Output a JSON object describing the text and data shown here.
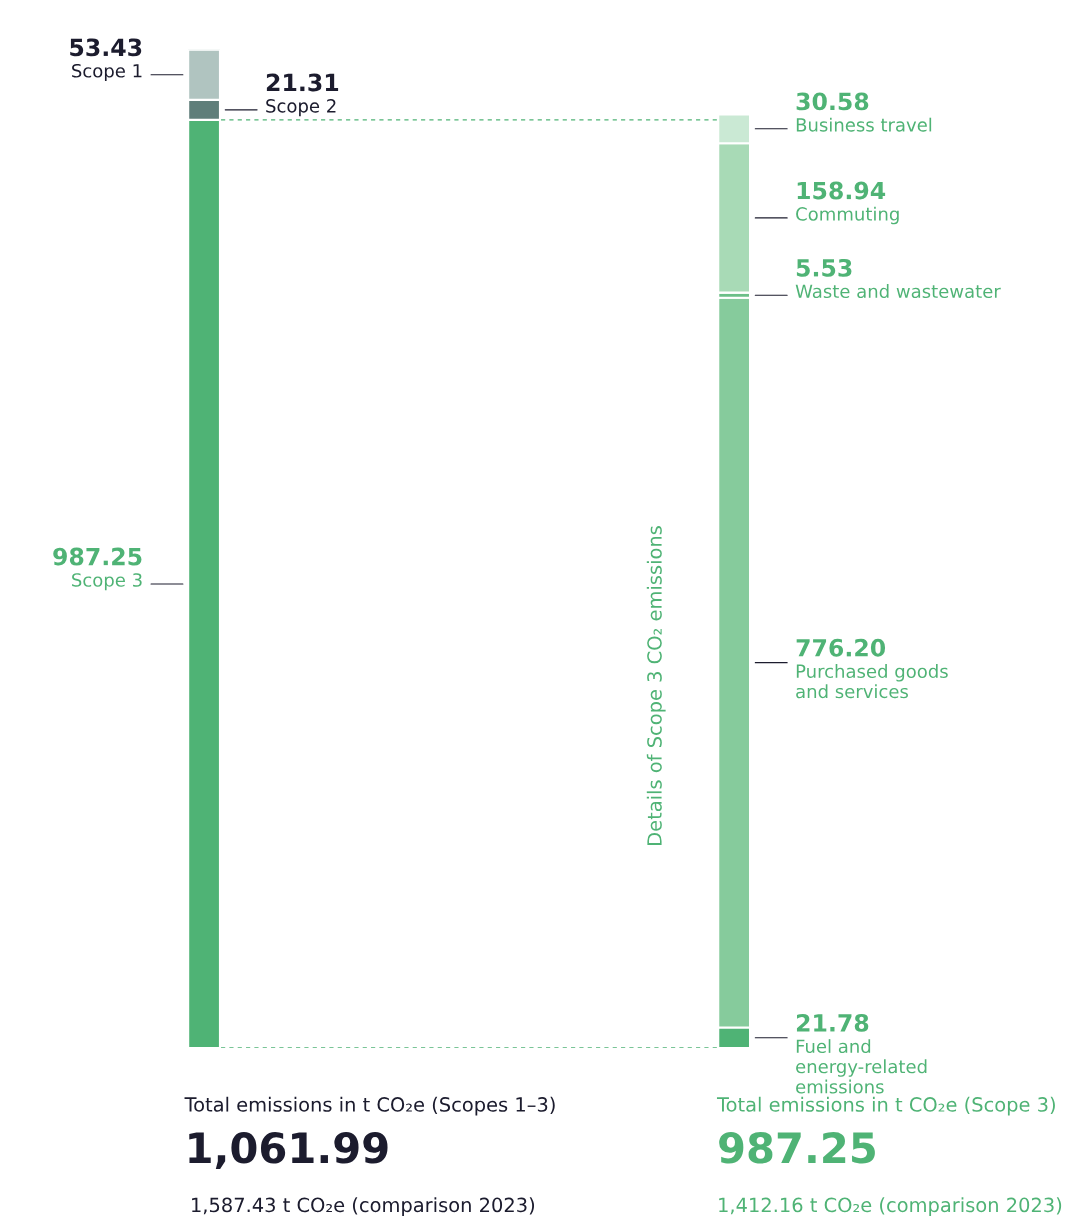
{
  "chart_data": {
    "type": "bar",
    "stacked": true,
    "categories": [
      null,
      null
    ],
    "ylim": [
      0,
      1061.99
    ],
    "ref_lines": [
      {
        "axis": "y",
        "value": 987.25,
        "color": "#4fb375",
        "line_style": "dashed"
      },
      {
        "axis": "y",
        "value": 0,
        "color": "#4fb375",
        "line_style": "dashed"
      }
    ],
    "series": [
      {
        "name": "Scope 3",
        "color": "#4fb375",
        "values": [
          987.25,
          null
        ],
        "value_labels": [
          "987.25",
          null
        ]
      },
      {
        "name": "Scope 2",
        "color": "#5f7e7a",
        "values": [
          21.31,
          null
        ],
        "value_labels": [
          "21.31",
          null
        ]
      },
      {
        "name": "Scope 1",
        "color": "#b0c4c0",
        "values": [
          53.43,
          null
        ],
        "value_labels": [
          "53.43",
          null
        ]
      },
      {
        "name": "Fuel and\nenergy-related\nemissions",
        "color": "#4fb375",
        "values": [
          null,
          21.78
        ],
        "value_labels": [
          null,
          "21.78"
        ]
      },
      {
        "name": "Purchased goods\nand services",
        "color": "#86cb9c",
        "values": [
          null,
          776.2
        ],
        "value_labels": [
          null,
          "776.20"
        ]
      },
      {
        "name": "Waste and wastewater",
        "color": "#6cbf88",
        "values": [
          null,
          5.53
        ],
        "value_labels": [
          null,
          "5.53"
        ]
      },
      {
        "name": "Commuting",
        "color": "#a8dab6",
        "values": [
          null,
          158.94
        ],
        "value_labels": [
          null,
          "158.94"
        ]
      },
      {
        "name": "Business travel",
        "color": "#cae9d4",
        "values": [
          null,
          30.58
        ],
        "value_labels": [
          null,
          "30.58"
        ]
      }
    ],
    "annotations": [
      "Details of Scope 3 CO₂ emissions",
      "Total emissions in t CO₂e (Scopes 1–3)",
      "1,061.99",
      "1,587.43 t CO₂e (comparison 2023)",
      "Total emissions in t CO₂e (Scope 3)",
      "987.25",
      "1,412.16 t CO₂e (comparison 2023)"
    ]
  }
}
